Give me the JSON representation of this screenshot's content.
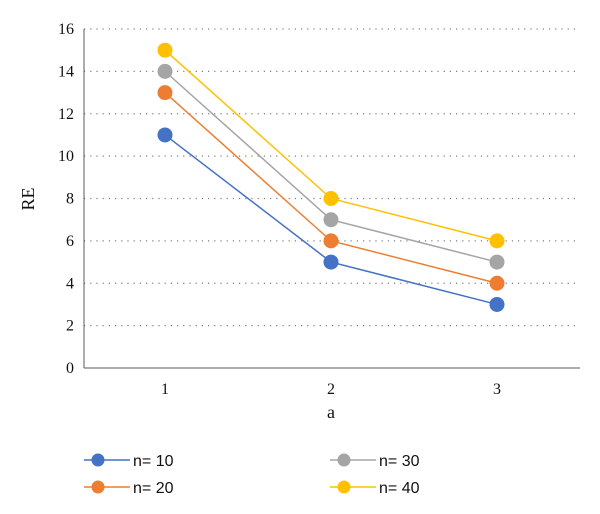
{
  "chart_data": {
    "type": "line",
    "x": [
      1,
      2,
      3
    ],
    "xlabel": "a",
    "ylabel": "RE",
    "ylim": [
      0,
      16
    ],
    "yticks": [
      0,
      2,
      4,
      6,
      8,
      10,
      12,
      14,
      16
    ],
    "grid": true,
    "legend_position": "bottom",
    "series": [
      {
        "name": "n= 10",
        "values": [
          11,
          5,
          3
        ],
        "color": "#4472C4"
      },
      {
        "name": "n= 20",
        "values": [
          13,
          6,
          4
        ],
        "color": "#ED7D31"
      },
      {
        "name": "n= 30",
        "values": [
          14,
          7,
          5
        ],
        "color": "#A5A5A5"
      },
      {
        "name": "n= 40",
        "values": [
          15,
          8,
          6
        ],
        "color": "#FFC000"
      }
    ]
  }
}
